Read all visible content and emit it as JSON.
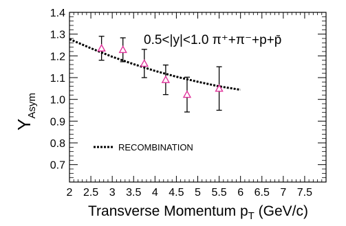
{
  "chart_data": {
    "type": "scatter",
    "x": [
      2.75,
      3.25,
      3.75,
      4.25,
      4.75,
      5.5
    ],
    "y": [
      1.235,
      1.228,
      1.165,
      1.09,
      1.022,
      1.05
    ],
    "y_err": [
      0.055,
      0.055,
      0.065,
      0.068,
      0.08,
      0.1
    ],
    "marker": "open-triangle",
    "marker_color": "#e0309a",
    "curve": {
      "name": "RECOMBINATION",
      "style": "dotted",
      "x": [
        2.0,
        2.5,
        3.0,
        3.5,
        4.0,
        4.5,
        5.0,
        5.5,
        6.0
      ],
      "y": [
        1.277,
        1.235,
        1.196,
        1.162,
        1.131,
        1.104,
        1.081,
        1.06,
        1.044
      ]
    },
    "xlim": [
      2.0,
      8.0
    ],
    "ylim": [
      0.62,
      1.4
    ],
    "xticks": [
      "2",
      "2.5",
      "3",
      "3.5",
      "4",
      "4.5",
      "5",
      "5.5",
      "6",
      "6.5",
      "7",
      "7.5"
    ],
    "yticks": [
      "0.7",
      "0.8",
      "0.9",
      "1.0",
      "1.1",
      "1.2",
      "1.3",
      "1.4"
    ],
    "xlabel": "Transverse Momentum p",
    "xlabel_sub": "T",
    "xlabel_unit": " (GeV/c)",
    "ylabel": "Y",
    "ylabel_sub": "Asym",
    "annotation": "0.5<|y|<1.0 π⁺+π⁻+p+p̄",
    "grid": false,
    "legend_position": "bottom-left"
  }
}
